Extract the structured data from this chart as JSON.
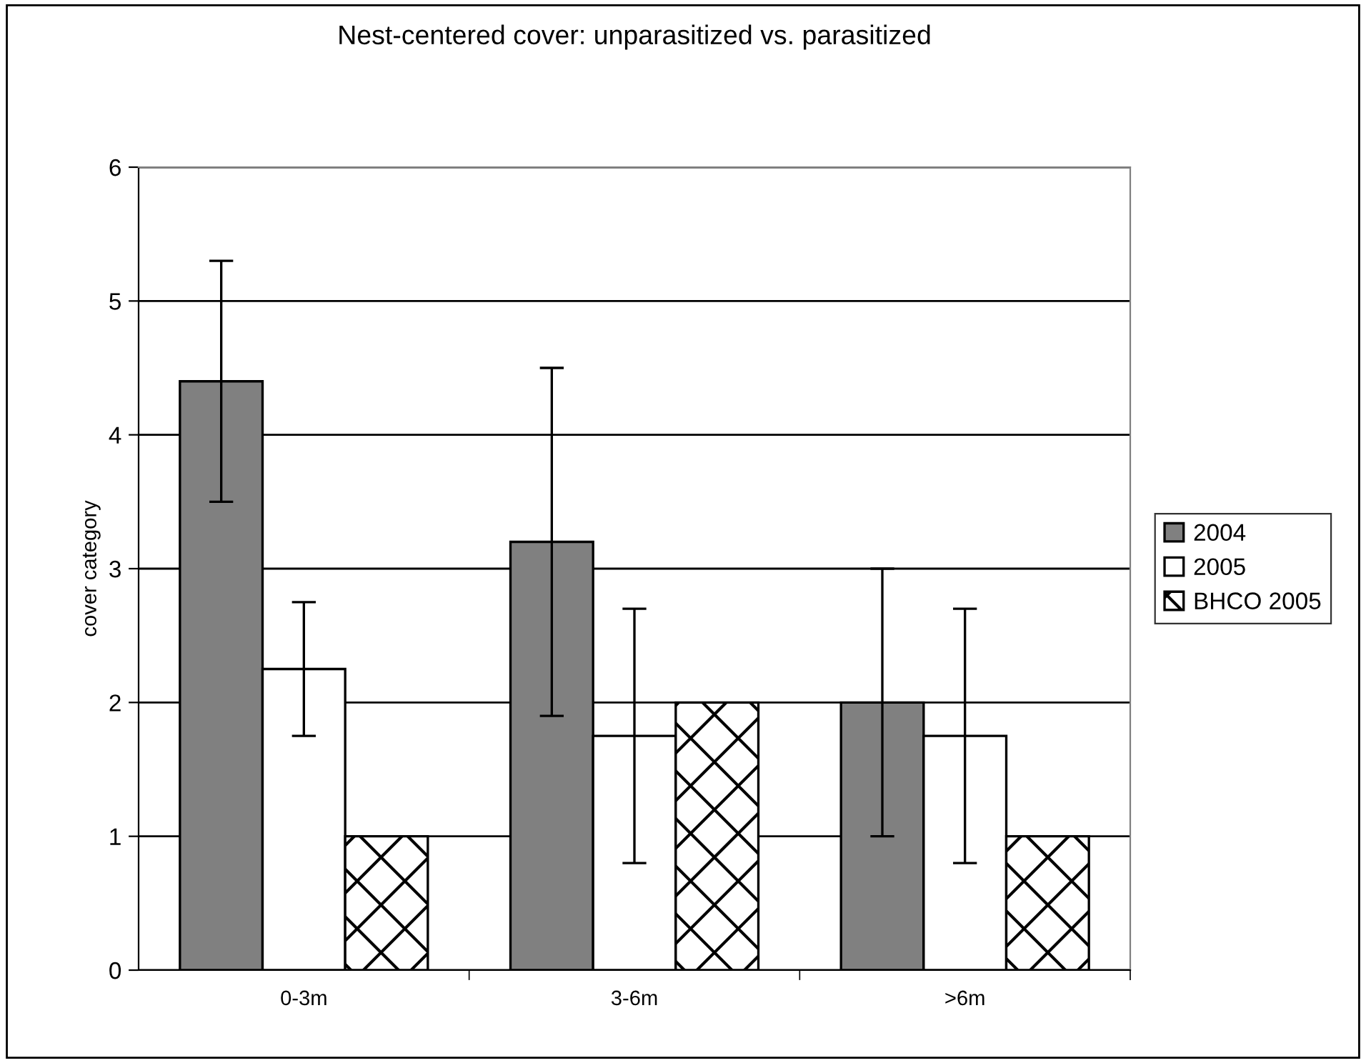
{
  "chart_data": {
    "type": "bar",
    "title": "Nest-centered cover: unparasitized vs. parasitized",
    "ylabel": "cover category",
    "categories": [
      "0-3m",
      "3-6m",
      ">6m"
    ],
    "series": [
      {
        "name": "2004",
        "color": "#808080",
        "values": [
          4.4,
          3.2,
          2.0
        ],
        "errors": [
          0.9,
          1.3,
          1.0
        ]
      },
      {
        "name": "2005",
        "color": "#ffffff",
        "values": [
          2.25,
          1.75,
          1.75
        ],
        "errors": [
          0.5,
          0.95,
          0.95
        ]
      },
      {
        "name": "BHCO 2005",
        "color": "#000000",
        "values": [
          1,
          2,
          1
        ]
      }
    ],
    "ylim": [
      0,
      6
    ],
    "yticks": [
      0,
      1,
      2,
      3,
      4,
      5,
      6
    ],
    "grid": "y",
    "legend": "right"
  }
}
